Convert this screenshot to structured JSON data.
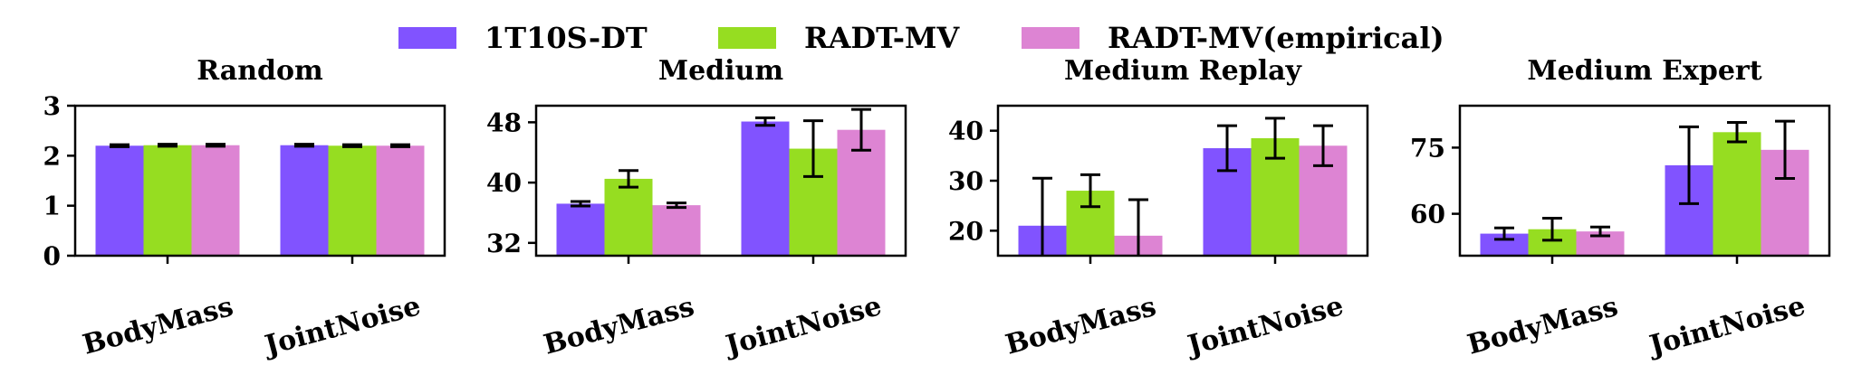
{
  "colors": {
    "1T10S-DT": "#8153ff",
    "RADT-MV": "#96dd21",
    "RADT-MV(empirical)": "#dd84d3",
    "axis": "#000000",
    "error_bar": "#000000"
  },
  "legend": {
    "items": [
      "1T10S-DT",
      "RADT-MV",
      "RADT-MV(empirical)"
    ],
    "placement": "top-center"
  },
  "chart_data": [
    {
      "type": "bar",
      "title": "Random",
      "categories": [
        "BodyMass",
        "JointNoise"
      ],
      "ylim": [
        0,
        3
      ],
      "yticks": [
        0,
        1,
        2,
        3
      ],
      "series": [
        {
          "name": "1T10S-DT",
          "values": [
            2.2,
            2.21
          ],
          "errors": [
            0.02,
            0.02
          ]
        },
        {
          "name": "RADT-MV",
          "values": [
            2.21,
            2.2
          ],
          "errors": [
            0.02,
            0.02
          ]
        },
        {
          "name": "RADT-MV(empirical)",
          "values": [
            2.21,
            2.2
          ],
          "errors": [
            0.02,
            0.02
          ]
        }
      ]
    },
    {
      "type": "bar",
      "title": "Medium",
      "categories": [
        "BodyMass",
        "JointNoise"
      ],
      "ylim": [
        30.3,
        50.2
      ],
      "yticks": [
        32,
        40,
        48
      ],
      "series": [
        {
          "name": "1T10S-DT",
          "values": [
            37.2,
            48.1
          ],
          "errors": [
            0.3,
            0.5
          ]
        },
        {
          "name": "RADT-MV",
          "values": [
            40.5,
            44.5
          ],
          "errors": [
            1.1,
            3.7
          ]
        },
        {
          "name": "RADT-MV(empirical)",
          "values": [
            37.0,
            47.0
          ],
          "errors": [
            0.3,
            2.7
          ]
        }
      ]
    },
    {
      "type": "bar",
      "title": "Medium Replay",
      "categories": [
        "BodyMass",
        "JointNoise"
      ],
      "ylim": [
        15,
        45
      ],
      "yticks": [
        20,
        30,
        40
      ],
      "series": [
        {
          "name": "1T10S-DT",
          "values": [
            21,
            36.5
          ],
          "errors": [
            9.5,
            4.5
          ]
        },
        {
          "name": "RADT-MV",
          "values": [
            28,
            38.5
          ],
          "errors": [
            3.2,
            4
          ]
        },
        {
          "name": "RADT-MV(empirical)",
          "values": [
            19,
            37
          ],
          "errors": [
            7.2,
            4
          ]
        }
      ]
    },
    {
      "type": "bar",
      "title": "Medium Expert",
      "categories": [
        "BodyMass",
        "JointNoise"
      ],
      "ylim": [
        50.5,
        84.5
      ],
      "yticks": [
        60,
        75
      ],
      "series": [
        {
          "name": "1T10S-DT",
          "values": [
            55.5,
            71
          ],
          "errors": [
            1.3,
            8.7
          ]
        },
        {
          "name": "RADT-MV",
          "values": [
            56.5,
            78.5
          ],
          "errors": [
            2.5,
            2.2
          ]
        },
        {
          "name": "RADT-MV(empirical)",
          "values": [
            56,
            74.5
          ],
          "errors": [
            1,
            6.5
          ]
        }
      ]
    }
  ]
}
